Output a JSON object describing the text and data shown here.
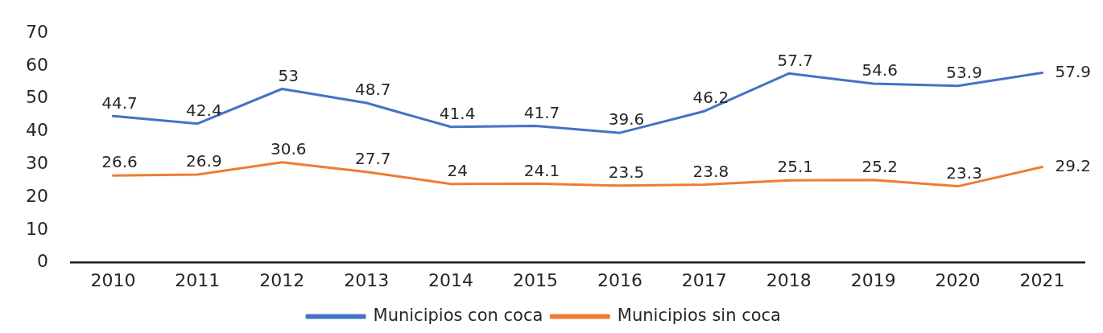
{
  "chart_data": {
    "type": "line",
    "categories": [
      "2010",
      "2011",
      "2012",
      "2013",
      "2014",
      "2015",
      "2016",
      "2017",
      "2018",
      "2019",
      "2020",
      "2021"
    ],
    "series": [
      {
        "name": "Municipios con coca",
        "color": "#4472c4",
        "values": [
          44.7,
          42.4,
          53,
          48.7,
          41.4,
          41.7,
          39.6,
          46.2,
          57.7,
          54.6,
          53.9,
          57.9
        ]
      },
      {
        "name": "Municipios sin coca",
        "color": "#ed7d31",
        "values": [
          26.6,
          26.9,
          30.6,
          27.7,
          24,
          24.1,
          23.5,
          23.8,
          25.1,
          25.2,
          23.3,
          29.2
        ]
      }
    ],
    "ylim": [
      0,
      70
    ],
    "yticks": [
      0,
      10,
      20,
      30,
      40,
      50,
      60,
      70
    ],
    "grid": false,
    "legend": "bottom",
    "data_labels": true,
    "marker": "none",
    "line_style": "solid"
  }
}
